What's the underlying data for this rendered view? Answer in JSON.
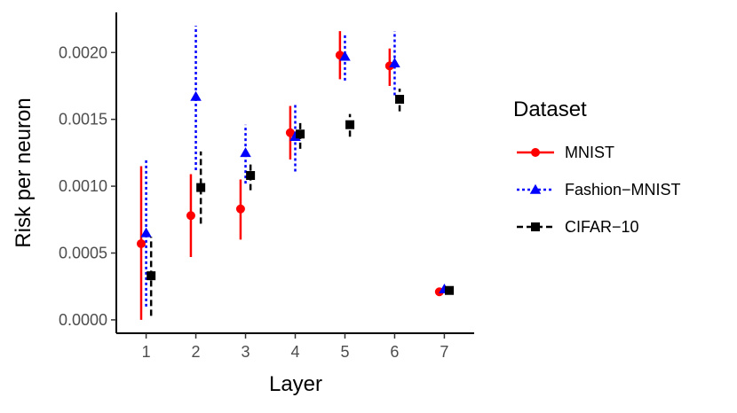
{
  "chart_data": {
    "type": "scatter",
    "xlabel": "Layer",
    "ylabel": "Risk per neuron",
    "x_ticks": [
      "1",
      "2",
      "3",
      "4",
      "5",
      "6",
      "7"
    ],
    "y_ticks": [
      "0.0000",
      "0.0005",
      "0.0010",
      "0.0015",
      "0.0020"
    ],
    "y_tick_values": [
      0,
      0.0005,
      0.001,
      0.0015,
      0.002
    ],
    "xlim": [
      0.4,
      7.6
    ],
    "ylim": [
      -0.0001,
      0.0023
    ],
    "grid": false,
    "legend": {
      "title": "Dataset",
      "position": "right"
    },
    "series": [
      {
        "name": "MNIST",
        "color": "#ff0000",
        "marker": "circle",
        "linestyle": "solid",
        "x": [
          1,
          2,
          3,
          4,
          5,
          6,
          7
        ],
        "y": [
          0.00057,
          0.00078,
          0.00083,
          0.0014,
          0.00198,
          0.0019,
          0.00021
        ],
        "ymin": [
          0.0,
          0.00047,
          0.0006,
          0.0012,
          0.0018,
          0.00175,
          0.0002
        ],
        "ymax": [
          0.00115,
          0.00109,
          0.00105,
          0.0016,
          0.00216,
          0.00203,
          0.00022
        ]
      },
      {
        "name": "Fashion−MNIST",
        "color": "#0000ff",
        "marker": "triangle",
        "linestyle": "dotted",
        "x": [
          1,
          2,
          3,
          4,
          5,
          6,
          7
        ],
        "y": [
          0.00065,
          0.00167,
          0.00125,
          0.00137,
          0.00197,
          0.00192,
          0.00023
        ],
        "ymin": [
          0.0001,
          0.00112,
          0.00102,
          0.00111,
          0.00179,
          0.00168,
          0.00022
        ],
        "ymax": [
          0.0012,
          0.0022,
          0.00146,
          0.00161,
          0.00214,
          0.00216,
          0.00024
        ]
      },
      {
        "name": "CIFAR−10",
        "color": "#000000",
        "marker": "square",
        "linestyle": "dashed",
        "x": [
          1,
          2,
          3,
          4,
          5,
          6,
          7
        ],
        "y": [
          0.00033,
          0.00099,
          0.00108,
          0.00139,
          0.00146,
          0.00165,
          0.00022
        ],
        "ymin": [
          3e-05,
          0.00072,
          0.00097,
          0.00128,
          0.00137,
          0.00156,
          0.00021
        ],
        "ymax": [
          0.00062,
          0.00126,
          0.00118,
          0.00149,
          0.00154,
          0.00173,
          0.00023
        ]
      }
    ]
  }
}
